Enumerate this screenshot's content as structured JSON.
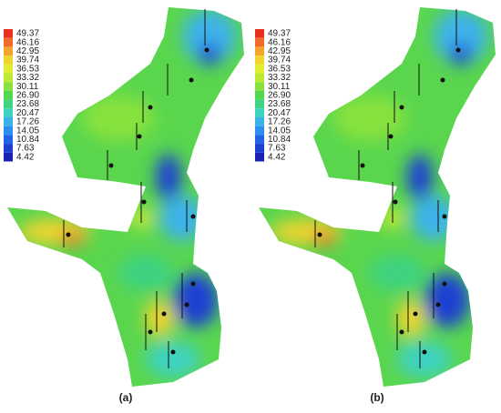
{
  "legend": {
    "labels": [
      "49.37",
      "46.16",
      "42.95",
      "39.74",
      "36.53",
      "33.32",
      "30.11",
      "26.90",
      "23.68",
      "20.47",
      "17.26",
      "14.05",
      "10.84",
      "7.63",
      "4.42"
    ],
    "colors": [
      "#e8301c",
      "#f06a2a",
      "#f5a42c",
      "#f2d42e",
      "#e2ec30",
      "#bcea34",
      "#88e23e",
      "#52d84c",
      "#3ed282",
      "#3ed2c2",
      "#3cb2ea",
      "#2e8ef0",
      "#2262e6",
      "#1e40d2",
      "#1a22b2"
    ]
  },
  "panels": [
    {
      "label": "(a)"
    },
    {
      "label": "(b)"
    }
  ]
}
